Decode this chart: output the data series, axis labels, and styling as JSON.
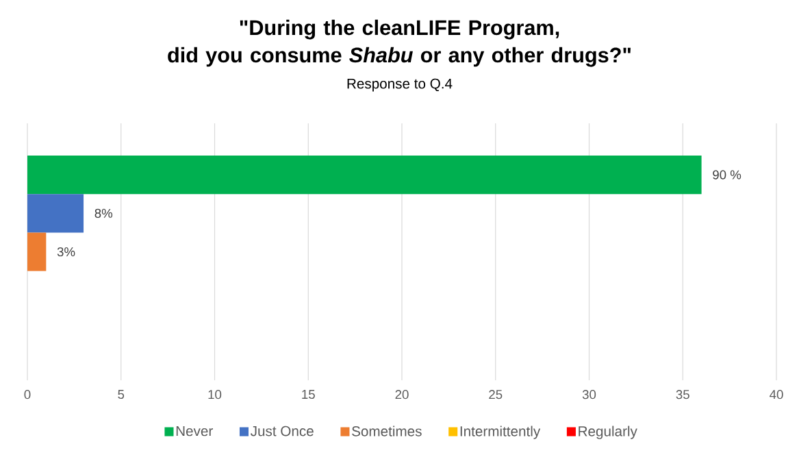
{
  "chart_data": {
    "type": "bar",
    "orientation": "horizontal",
    "title": "\"During the cleanLIFE Program,\ndid you consume *Shabu* or any other drugs?\"",
    "subtitle": "Response to Q.4",
    "categories": [
      null
    ],
    "series": [
      {
        "name": "Never",
        "color": "#00b050",
        "values": [
          36
        ]
      },
      {
        "name": "Just Once",
        "color": "#4472c4",
        "values": [
          3
        ]
      },
      {
        "name": "Sometimes",
        "color": "#ed7d31",
        "values": [
          1
        ]
      },
      {
        "name": "Intermittently",
        "color": "#ffc000",
        "values": [
          0
        ]
      },
      {
        "name": "Regularly",
        "color": "#ff0000",
        "values": [
          0
        ]
      }
    ],
    "annotations": [
      {
        "text": "90 %",
        "x": 36
      },
      {
        "text": "8%",
        "x": 3
      },
      {
        "text": "3%",
        "x": 1
      }
    ],
    "xlim": [
      0,
      40
    ],
    "xticks": [
      0,
      5,
      10,
      15,
      20,
      25,
      30,
      35,
      40
    ],
    "grid": "x",
    "legend": "bottom"
  }
}
